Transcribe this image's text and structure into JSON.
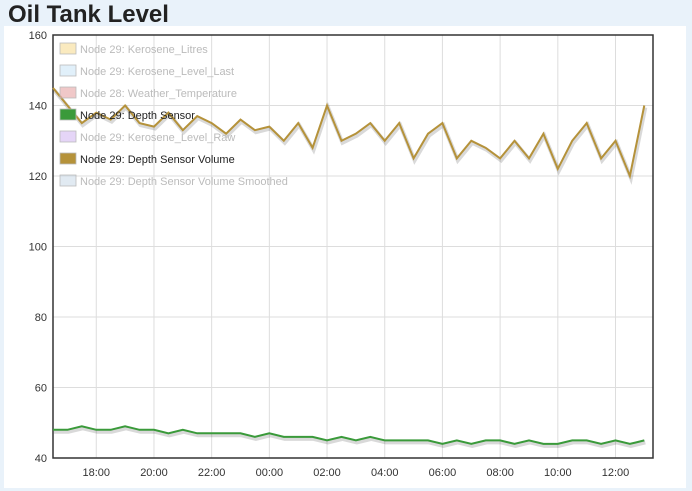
{
  "page": {
    "title": "Oil Tank Level"
  },
  "chart_data": {
    "type": "line",
    "x_unit": "hour",
    "x_ticks": [
      "18:00",
      "20:00",
      "22:00",
      "00:00",
      "02:00",
      "04:00",
      "06:00",
      "08:00",
      "10:00",
      "12:00"
    ],
    "x_tick_values": [
      18,
      20,
      22,
      24,
      26,
      28,
      30,
      32,
      34,
      36
    ],
    "xlim": [
      16.5,
      37.3
    ],
    "ylim": [
      40,
      160
    ],
    "y_ticks": [
      40,
      60,
      80,
      100,
      120,
      140,
      160
    ],
    "grid": true,
    "legend_position": "top-left",
    "series": [
      {
        "name": "Node 29: Kerosene_Litres",
        "color": "#f5d98b",
        "active": false,
        "values": []
      },
      {
        "name": "Node 29: Kerosene_Level_Last",
        "color": "#c9e4f5",
        "active": false,
        "values": []
      },
      {
        "name": "Node 28: Weather_Temperature",
        "color": "#e39a9a",
        "active": false,
        "values": []
      },
      {
        "name": "Node 29: Depth Sensor",
        "color": "#3a9a3a",
        "active": true,
        "x": [
          16.5,
          17,
          17.5,
          18,
          18.5,
          19,
          19.5,
          20,
          20.5,
          21,
          21.5,
          22,
          22.5,
          23,
          23.5,
          24,
          24.5,
          25,
          25.5,
          26,
          26.5,
          27,
          27.5,
          28,
          28.5,
          29,
          29.5,
          30,
          30.5,
          31,
          31.5,
          32,
          32.5,
          33,
          33.5,
          34,
          34.5,
          35,
          35.5,
          36,
          36.5,
          37
        ],
        "values": [
          48,
          48,
          49,
          48,
          48,
          49,
          48,
          48,
          47,
          48,
          47,
          47,
          47,
          47,
          46,
          47,
          46,
          46,
          46,
          45,
          46,
          45,
          46,
          45,
          45,
          45,
          45,
          44,
          45,
          44,
          45,
          45,
          44,
          45,
          44,
          44,
          45,
          45,
          44,
          45,
          44,
          45
        ]
      },
      {
        "name": "Node 29: Kerosene_Level_Raw",
        "color": "#d0b3f0",
        "active": false,
        "values": []
      },
      {
        "name": "Node 29: Depth Sensor Volume",
        "color": "#b5923a",
        "active": true,
        "x": [
          16.5,
          17,
          17.5,
          18,
          18.5,
          19,
          19.5,
          20,
          20.5,
          21,
          21.5,
          22,
          22.5,
          23,
          23.5,
          24,
          24.5,
          25,
          25.5,
          26,
          26.5,
          27,
          27.5,
          28,
          28.5,
          29,
          29.5,
          30,
          30.5,
          31,
          31.5,
          32,
          32.5,
          33,
          33.5,
          34,
          34.5,
          35,
          35.5,
          36,
          36.5,
          37
        ],
        "values": [
          145,
          140,
          135,
          138,
          136,
          140,
          135,
          134,
          138,
          133,
          137,
          135,
          132,
          136,
          133,
          134,
          130,
          135,
          128,
          140,
          130,
          132,
          135,
          130,
          135,
          125,
          132,
          135,
          125,
          130,
          128,
          125,
          130,
          125,
          132,
          122,
          130,
          135,
          125,
          130,
          120,
          140
        ]
      },
      {
        "name": "Node 29: Depth Sensor Volume Smoothed",
        "color": "#c8d8e8",
        "active": false,
        "values": []
      }
    ]
  }
}
